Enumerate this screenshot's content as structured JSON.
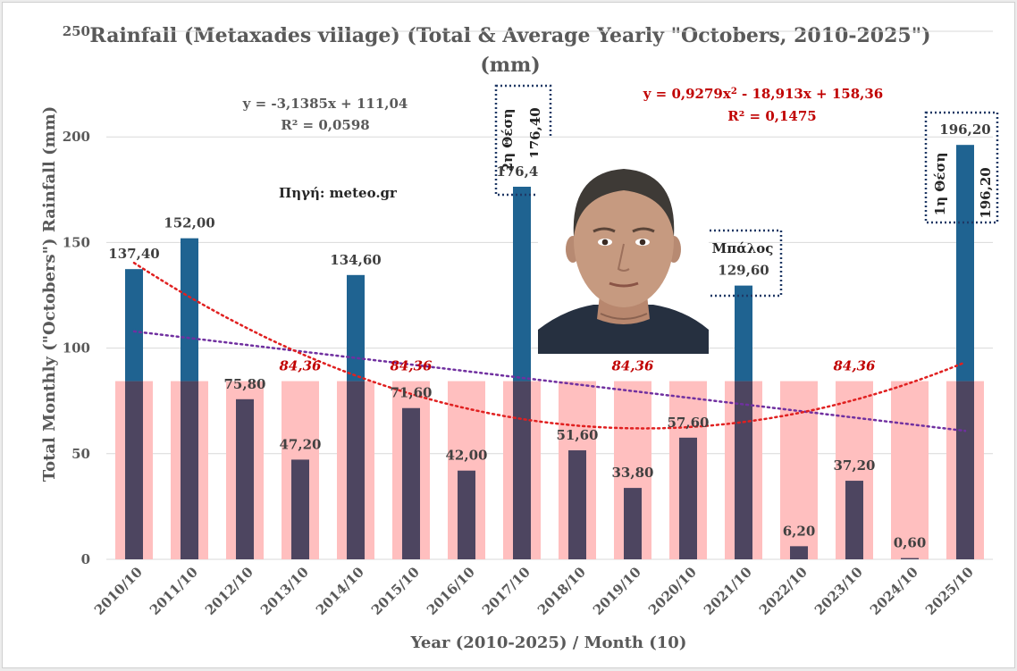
{
  "chart_data": {
    "type": "bar",
    "title_line1": "Rainfall (Metaxades village) (Total & Average Yearly \"Octobers, 2010-2025\")",
    "title_line2": "(mm)",
    "xlabel": "Year (2010-2025) / Month (10)",
    "ylabel": "Total Monthly (\"Octobers\") Rainfall (mm)",
    "ylim": [
      0,
      250
    ],
    "yticks": [
      "0",
      "50",
      "100",
      "150",
      "200",
      "250"
    ],
    "categories": [
      "2010/10",
      "2011/10",
      "2012/10",
      "2013/10",
      "2014/10",
      "2015/10",
      "2016/10",
      "2017/10",
      "2018/10",
      "2019/10",
      "2020/10",
      "2021/10",
      "2022/10",
      "2023/10",
      "2024/10",
      "2025/10"
    ],
    "series": [
      {
        "values": [
          137.4,
          152.0,
          75.8,
          47.2,
          134.6,
          71.6,
          42.0,
          176.4,
          51.6,
          33.8,
          57.6,
          129.6,
          6.2,
          37.2,
          0.6,
          196.2
        ],
        "color_above_avg": "#1f6391",
        "color_below_avg": "#4d4560"
      },
      {
        "values": [
          84.36,
          84.36,
          84.36,
          84.36,
          84.36,
          84.36,
          84.36,
          84.36,
          84.36,
          84.36,
          84.36,
          84.36,
          84.36,
          84.36,
          84.36,
          84.36
        ],
        "color": "#ffbfbf"
      }
    ],
    "data_labels": [
      "137,40",
      "152,00",
      "75,80",
      "47,20",
      "134,60",
      "71,60",
      "42,00",
      "176,40",
      "51,60",
      "33,80",
      "57,60",
      "129,60",
      "6,20",
      "37,20",
      "0,60",
      "196,20"
    ],
    "average_label": "84,36",
    "linear_trend": {
      "equation": "y = -3,1385x + 111,04",
      "r2": "R² = 0,0598",
      "color": "#7030a0"
    },
    "poly_trend": {
      "equation_prefix": "y = 0,9279x",
      "equation_suffix": " - 18,913x + 158,36",
      "r2": "R² = 0,1475",
      "color": "#e02020"
    },
    "source": "Πηγή: meteo.gr",
    "callouts": {
      "second_place": "2η Θέση",
      "second_value": "176,40",
      "first_place": "1η Θέση",
      "first_value": "196,20",
      "balos_name": "Μπάλος",
      "balos_value": "129,60"
    },
    "grid": true
  },
  "colors": {
    "gridline": "#d9d9d9",
    "axis_text": "#595959",
    "avg_text": "#c00000",
    "callout_border": "#1f3864"
  }
}
